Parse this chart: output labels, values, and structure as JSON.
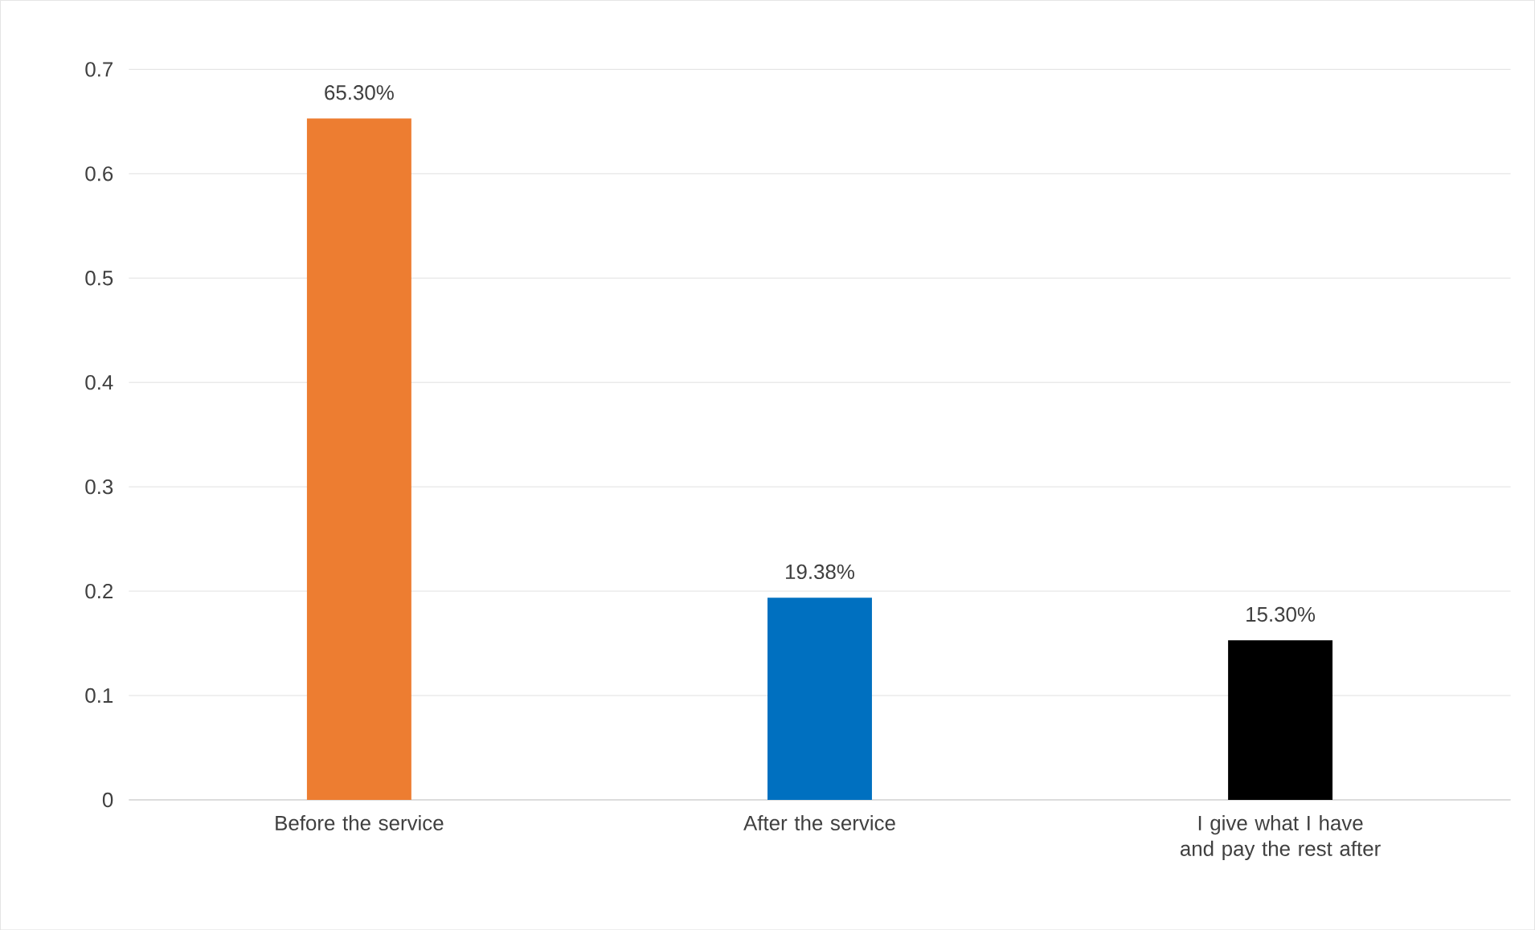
{
  "chart_data": {
    "type": "bar",
    "categories": [
      "Before the service",
      "After the service",
      "I give what I have and pay the rest after"
    ],
    "values": [
      0.653,
      0.1938,
      0.153
    ],
    "colors": [
      "#ed7d31",
      "#0070c0",
      "#000000"
    ],
    "value_labels": [
      "65.30%",
      "19.38%",
      "15.30%"
    ],
    "ylim": [
      0,
      0.7
    ],
    "yticks": [
      0,
      0.1,
      0.2,
      0.3,
      0.4,
      0.5,
      0.6,
      0.7
    ],
    "grid": "y"
  }
}
